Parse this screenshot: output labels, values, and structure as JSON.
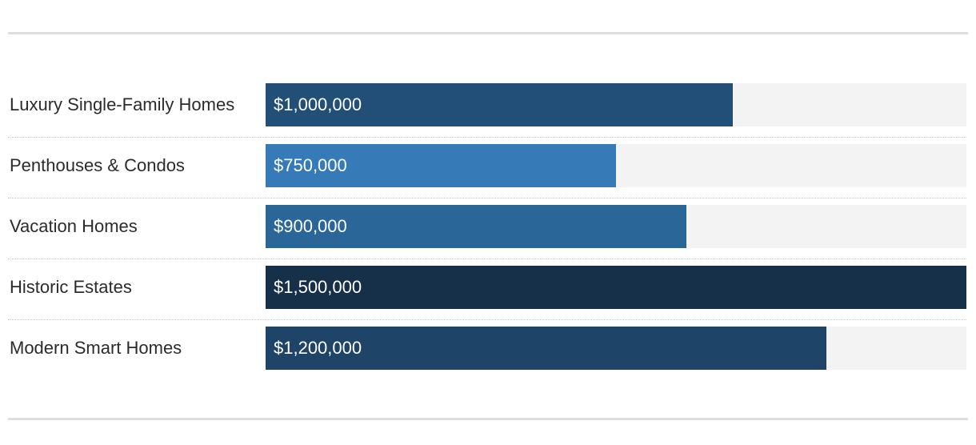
{
  "chart_data": {
    "type": "bar",
    "orientation": "horizontal",
    "categories": [
      "Luxury Single-Family Homes",
      "Penthouses & Condos",
      "Vacation Homes",
      "Historic Estates",
      "Modern Smart Homes"
    ],
    "values": [
      1000000,
      750000,
      900000,
      1500000,
      1200000
    ],
    "value_labels": [
      "$1,000,000",
      "$750,000",
      "$900,000",
      "$1,500,000",
      "$1,200,000"
    ],
    "bar_colors": [
      "#224f78",
      "#367bb8",
      "#2b6699",
      "#163049",
      "#1e4468"
    ],
    "track_color": "#f3f3f3",
    "xlim": [
      0,
      1500000
    ],
    "grid": false,
    "legend": "none"
  }
}
